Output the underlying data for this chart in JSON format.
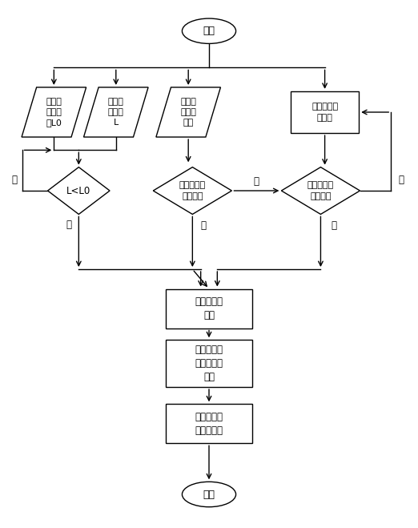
{
  "bg_color": "#ffffff",
  "line_color": "#000000",
  "text_color": "#000000",
  "start_text": "开始",
  "end_text": "结束",
  "input_L0_text": "设定的\n安全距\n离L0",
  "input_L_text": "雷达监\n测距离\nL",
  "input_hill_text": "下坡辅\n助开关\n激活",
  "input_epark_text": "电子驻车开\n关拉起",
  "decision_L_text": "L<L0",
  "decision_speed_text": "下坡速度小\n于设定值",
  "decision_veh_text": "车辆车速人\n于设定值",
  "process_driver_text": "驾驶员未踩\n刹车",
  "process_brake_text": "制动控制器\n请求点亮制\n动灯",
  "process_body_text": "车身控制器\n点亮制动灯",
  "no_text": "否",
  "yes_text": "是"
}
